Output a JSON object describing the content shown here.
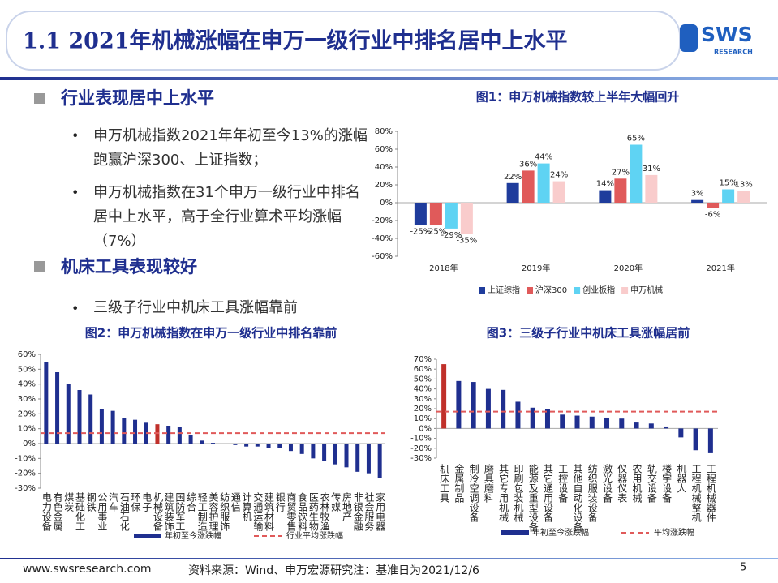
{
  "header": {
    "title": "1.1 2021年机械涨幅在申万一级行业中排名居中上水平",
    "logo": "SWS",
    "logo_sub": "RESEARCH"
  },
  "sections": [
    {
      "heading": "行业表现居中上水平",
      "bullets": [
        "申万机械指数2021年年初至今13%的涨幅跑赢沪深300、上证指数；",
        "申万机械指数在31个申万一级行业中排名居中上水平，高于全行业算术平均涨幅（7%）"
      ]
    },
    {
      "heading": "机床工具表现较好",
      "bullets": [
        "三级子行业中机床工具涨幅靠前"
      ]
    }
  ],
  "footer": {
    "site": "www.swsresearch.com",
    "source": "资料来源：Wind、申万宏源研究注：基准日为2021/12/6",
    "page": "5"
  },
  "chart_data": [
    {
      "type": "bar",
      "title": "图1：申万机械指数较上半年大幅回升",
      "categories": [
        "2018年",
        "2019年",
        "2020年",
        "2021年"
      ],
      "series": [
        {
          "name": "上证综指",
          "color": "#1f3c9c",
          "values": [
            -25,
            22,
            14,
            3
          ],
          "value_labels": [
            "-25%",
            "22%",
            "14%",
            "3%"
          ]
        },
        {
          "name": "沪深300",
          "color": "#e05a5a",
          "values": [
            -25,
            36,
            27,
            -6
          ],
          "value_labels": [
            "-25%",
            "36%",
            "27%",
            "-6%"
          ]
        },
        {
          "name": "创业板指",
          "color": "#5fd3f3",
          "values": [
            -29,
            44,
            65,
            15
          ],
          "value_labels": [
            "-29%",
            "44%",
            "65%",
            "15%"
          ]
        },
        {
          "name": "申万机械",
          "color": "#f9cccc",
          "values": [
            -35,
            24,
            31,
            13
          ],
          "value_labels": [
            "-35%",
            "24%",
            "31%",
            "13%"
          ]
        }
      ],
      "ylim": [
        -60,
        80
      ],
      "yticks": [
        {
          "value": -60,
          "label": "-60%"
        },
        {
          "value": -40,
          "label": "-40%"
        },
        {
          "value": -20,
          "label": "-20%"
        },
        {
          "value": 0,
          "label": "0%"
        },
        {
          "value": 20,
          "label": "20%"
        },
        {
          "value": 40,
          "label": "40%"
        },
        {
          "value": 60,
          "label": "60%"
        },
        {
          "value": 80,
          "label": "80%"
        }
      ]
    },
    {
      "type": "bar",
      "title": "图2：申万机械指数在申万一级行业中排名靠前",
      "categories": [
        "电力设备",
        "有色金属",
        "煤炭",
        "基础化工",
        "钢铁",
        "公用事业",
        "汽车",
        "石油石化",
        "环保",
        "电子",
        "机械设备",
        "建筑装饰",
        "国防军工",
        "综合",
        "轻工制造",
        "美容护理",
        "纺织服饰",
        "通信",
        "计算机",
        "交通运输",
        "建筑材料",
        "银行",
        "商贸零售",
        "食品饮料",
        "医药生物",
        "农林牧渔",
        "传媒",
        "房地产",
        "非银金融",
        "社会服务",
        "家用电器"
      ],
      "series": [
        {
          "name": "年初至今涨跌幅",
          "color": "#1f2f8f",
          "values": [
            55,
            48,
            40,
            36,
            33,
            23,
            22,
            17,
            16,
            14,
            13,
            12,
            11,
            6,
            2,
            0.5,
            0,
            -1,
            -2,
            -2,
            -3,
            -3,
            -5,
            -7,
            -10,
            -12,
            -14,
            -16,
            -19,
            -20,
            -23
          ],
          "colors": [
            "#1f2f8f",
            "#1f2f8f",
            "#1f2f8f",
            "#1f2f8f",
            "#1f2f8f",
            "#1f2f8f",
            "#1f2f8f",
            "#1f2f8f",
            "#1f2f8f",
            "#1f2f8f",
            "#c0302a",
            "#1f2f8f",
            "#1f2f8f",
            "#1f2f8f",
            "#1f2f8f",
            "#1f2f8f",
            "#1f2f8f",
            "#1f2f8f",
            "#1f2f8f",
            "#1f2f8f",
            "#1f2f8f",
            "#1f2f8f",
            "#1f2f8f",
            "#1f2f8f",
            "#1f2f8f",
            "#1f2f8f",
            "#1f2f8f",
            "#1f2f8f",
            "#1f2f8f",
            "#1f2f8f",
            "#1f2f8f"
          ]
        }
      ],
      "reference": {
        "name": "行业平均涨跌幅",
        "value": 7,
        "color": "#e05a5a"
      },
      "ylim": [
        -30,
        60
      ],
      "yticks": [
        {
          "value": -30,
          "label": "-30%"
        },
        {
          "value": -20,
          "label": "-20%"
        },
        {
          "value": -10,
          "label": "-10%"
        },
        {
          "value": 0,
          "label": "0%"
        },
        {
          "value": 10,
          "label": "10%"
        },
        {
          "value": 20,
          "label": "20%"
        },
        {
          "value": 30,
          "label": "30%"
        },
        {
          "value": 40,
          "label": "40%"
        },
        {
          "value": 50,
          "label": "50%"
        },
        {
          "value": 60,
          "label": "60%"
        }
      ]
    },
    {
      "type": "bar",
      "title": "图3：三级子行业中机床工具涨幅居前",
      "categories": [
        "机床工具",
        "金属制品",
        "制冷空调设备",
        "磨具磨料",
        "其它专用机械",
        "印刷包装机械",
        "能源及重型设备",
        "其它通用设备",
        "工控设备",
        "其他自动化设备",
        "纺织服装设备",
        "激光设备",
        "仪器仪表",
        "农用机械",
        "轨交设备",
        "楼宇设备",
        "机器人",
        "工程机械整机",
        "工程机械器件"
      ],
      "series": [
        {
          "name": "年初至今涨跌幅",
          "color": "#1f2f8f",
          "values": [
            65,
            48,
            47,
            40,
            39,
            27,
            21,
            20,
            14,
            13,
            12,
            11,
            10,
            6,
            5,
            2,
            -9,
            -22,
            -25
          ],
          "colors": [
            "#c0302a",
            "#1f2f8f",
            "#1f2f8f",
            "#1f2f8f",
            "#1f2f8f",
            "#1f2f8f",
            "#1f2f8f",
            "#1f2f8f",
            "#1f2f8f",
            "#1f2f8f",
            "#1f2f8f",
            "#1f2f8f",
            "#1f2f8f",
            "#1f2f8f",
            "#1f2f8f",
            "#1f2f8f",
            "#1f2f8f",
            "#1f2f8f",
            "#1f2f8f"
          ]
        }
      ],
      "reference": {
        "name": "平均涨跌幅",
        "value": 17,
        "color": "#e05a5a"
      },
      "ylim": [
        -30,
        70
      ],
      "yticks": [
        {
          "value": -30,
          "label": "-30%"
        },
        {
          "value": -20,
          "label": "-20%"
        },
        {
          "value": -10,
          "label": "-10%"
        },
        {
          "value": 0,
          "label": "0%"
        },
        {
          "value": 10,
          "label": "10%"
        },
        {
          "value": 20,
          "label": "20%"
        },
        {
          "value": 30,
          "label": "30%"
        },
        {
          "value": 40,
          "label": "40%"
        },
        {
          "value": 50,
          "label": "50%"
        },
        {
          "value": 60,
          "label": "60%"
        },
        {
          "value": 70,
          "label": "70%"
        }
      ]
    }
  ]
}
